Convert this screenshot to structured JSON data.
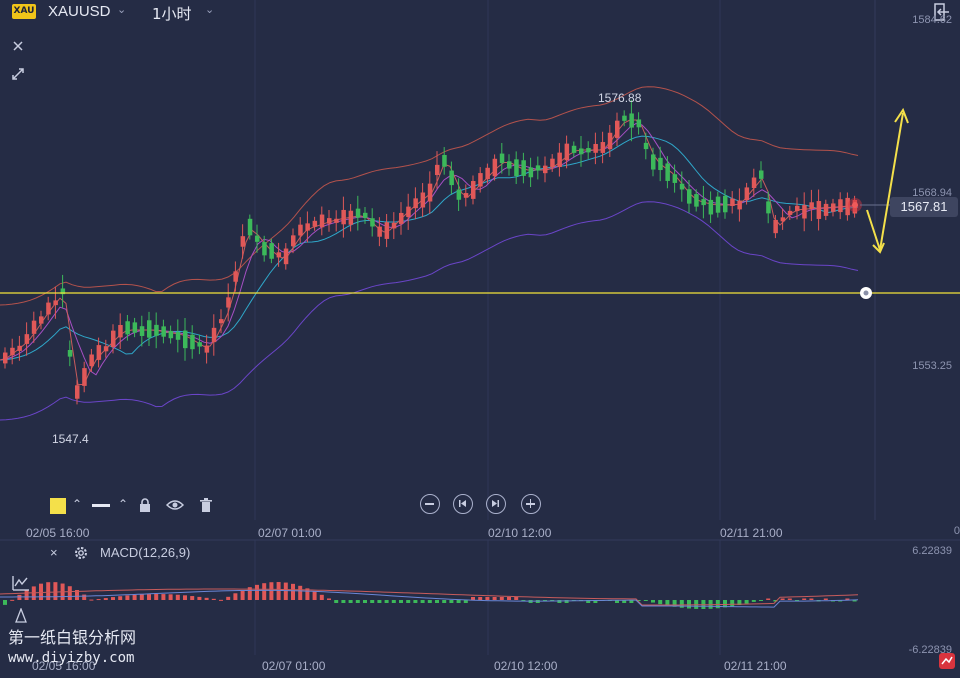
{
  "header": {
    "symbol_badge": "XAU",
    "symbol": "XAUUSD",
    "interval": "1小时"
  },
  "price_axis": {
    "top": "1584.62",
    "upper": "1568.94",
    "lower": "1553.25",
    "current": "1567.81",
    "cut_right": "0"
  },
  "annotations": {
    "high": "1576.88",
    "low": "1547.4"
  },
  "time_axis": [
    "02/05 16:00",
    "02/07 01:00",
    "02/10 12:00",
    "02/11 21:00"
  ],
  "macd": {
    "close_label": "×",
    "title": "MACD(12,26,9)",
    "max": "6.22839",
    "min": "-6.22839"
  },
  "watermark": {
    "line1": "第一纸白银分析网",
    "line2": "www.diyizby.com"
  },
  "colors": {
    "background": "#252c45",
    "up": "#e05858",
    "down": "#3cb95a",
    "hline": "#f3e43a",
    "arrow": "#f4e04a"
  },
  "icons": [
    "chevron-down-icon",
    "exit-fullscreen-icon",
    "close-icon",
    "collapse-icon",
    "lock-icon",
    "eye-icon",
    "trash-icon",
    "gear-icon",
    "indicator-icon"
  ]
}
